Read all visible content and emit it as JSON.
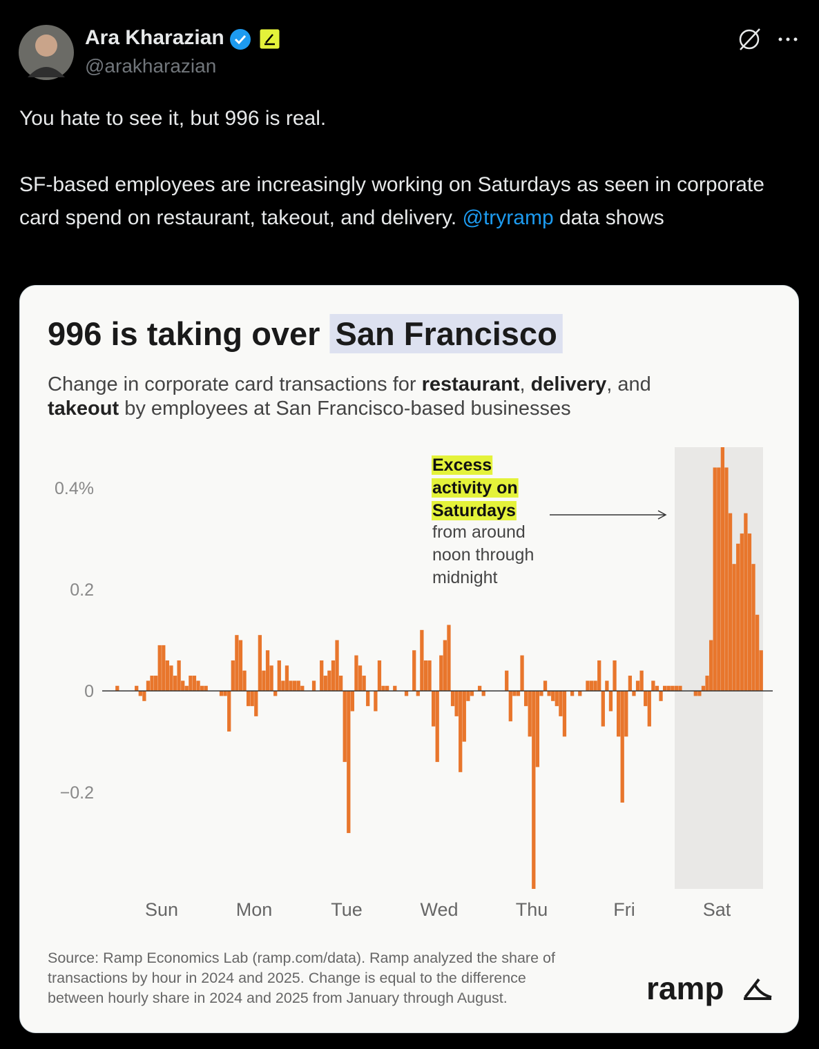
{
  "tweet": {
    "name": "Ara Kharazian",
    "handle": "@arakharazian",
    "paragraph_1": "You hate to see it, but 996 is real.",
    "paragraph_2": "SF-based employees are increasingly working on Saturdays as seen in corporate card spend on restaurant, takeout, and delivery.",
    "mention": "@tryramp",
    "paragraph_2_end": "data shows"
  },
  "chart_data": {
    "type": "bar",
    "title": [
      "996 is taking over",
      "San Francisco"
    ],
    "subtitle": [
      [
        "Change in corporate card transactions for ",
        "restaurant",
        ", ",
        "delivery",
        ", and"
      ],
      [
        "takeout",
        " by employees at San Francisco-based businesses"
      ]
    ],
    "annotation": {
      "highlight": [
        "Excess",
        "activity on",
        "Saturdays"
      ],
      "text": [
        "from around",
        "noon through",
        "midnight"
      ]
    },
    "categories": [
      null,
      null,
      null,
      null,
      null,
      null,
      null,
      null,
      null,
      null,
      null,
      null,
      "Sun",
      null,
      null,
      null,
      null,
      null,
      null,
      null,
      null,
      null,
      null,
      null,
      null,
      null,
      null,
      null,
      null,
      null,
      null,
      null,
      null,
      null,
      null,
      null,
      "Mon",
      null,
      null,
      null,
      null,
      null,
      null,
      null,
      null,
      null,
      null,
      null,
      null,
      null,
      null,
      null,
      null,
      null,
      null,
      null,
      null,
      null,
      null,
      null,
      "Tue",
      null,
      null,
      null,
      null,
      null,
      null,
      null,
      null,
      null,
      null,
      null,
      null,
      null,
      null,
      null,
      null,
      null,
      null,
      null,
      null,
      null,
      null,
      null,
      "Wed",
      null,
      null,
      null,
      null,
      null,
      null,
      null,
      null,
      null,
      null,
      null,
      null,
      null,
      null,
      null,
      null,
      null,
      null,
      null,
      null,
      null,
      null,
      null,
      "Thu",
      null,
      null,
      null,
      null,
      null,
      null,
      null,
      null,
      null,
      null,
      null,
      null,
      null,
      null,
      null,
      null,
      null,
      null,
      null,
      null,
      null,
      null,
      null,
      "Fri",
      null,
      null,
      null,
      null,
      null,
      null,
      null,
      null,
      null,
      null,
      null,
      null,
      null,
      null,
      null,
      null,
      null,
      null,
      null,
      null,
      null,
      null,
      null,
      "Sat",
      null,
      null,
      null,
      null,
      null,
      null,
      null,
      null,
      null,
      null,
      null
    ],
    "values": [
      0.01,
      0,
      0,
      0,
      0,
      0.01,
      -0.01,
      -0.02,
      0.02,
      0.03,
      0.03,
      0.09,
      0.09,
      0.06,
      0.05,
      0.03,
      0.06,
      0.02,
      0.01,
      0.03,
      0.03,
      0.02,
      0.01,
      0.01,
      0,
      0,
      0,
      -0.01,
      -0.01,
      -0.08,
      0.06,
      0.11,
      0.1,
      0.04,
      -0.03,
      -0.03,
      -0.05,
      0.11,
      0.04,
      0.08,
      0.05,
      -0.01,
      0.06,
      0.02,
      0.05,
      0.02,
      0.02,
      0.02,
      0.01,
      0,
      0,
      0.02,
      0,
      0.06,
      0.03,
      0.04,
      0.06,
      0.1,
      0.03,
      -0.14,
      -0.28,
      -0.04,
      0.07,
      0.05,
      0.03,
      -0.03,
      0,
      -0.04,
      0.06,
      0.01,
      0.01,
      0,
      0.01,
      0,
      0,
      -0.01,
      0,
      0.08,
      -0.01,
      0.12,
      0.06,
      0.06,
      -0.07,
      -0.14,
      0.07,
      0.1,
      0.13,
      -0.03,
      -0.05,
      -0.16,
      -0.1,
      -0.02,
      -0.01,
      0,
      0.01,
      -0.01,
      0,
      0,
      0,
      0,
      0,
      0.04,
      -0.06,
      -0.01,
      -0.01,
      0.07,
      -0.03,
      -0.09,
      -0.39,
      -0.15,
      -0.01,
      0.02,
      -0.01,
      -0.02,
      -0.03,
      -0.05,
      -0.09,
      0,
      -0.01,
      0,
      -0.01,
      0,
      0.02,
      0.02,
      0.02,
      0.06,
      -0.07,
      0.02,
      -0.04,
      0.06,
      -0.09,
      -0.22,
      -0.09,
      0.03,
      -0.01,
      0.02,
      0.04,
      -0.03,
      -0.07,
      0.02,
      0.01,
      -0.02,
      0.01,
      0.01,
      0.01,
      0.01,
      0.01,
      0,
      0,
      0,
      -0.01,
      -0.01,
      0.01,
      0.03,
      0.1,
      0.44,
      0.44,
      0.48,
      0.44,
      0.35,
      0.25,
      0.29,
      0.31,
      0.35,
      0.31,
      0.25,
      0.15,
      0.08
    ],
    "color": "#e8762c",
    "ylim": [
      -0.39,
      0.48
    ],
    "yticks": [
      {
        "value": 0.4,
        "label": "0.4%"
      },
      0.2,
      0,
      {
        "value": -0.2,
        "label": "−0.2"
      }
    ],
    "grid": false,
    "source": [
      "Source: Ramp Economics Lab (ramp.com/data). Ramp analyzed the share of",
      "transactions by hour in 2024 and 2025. Change is equal to the difference",
      "between hourly share in 2024 and 2025 from January through August."
    ],
    "brand": "ramp"
  }
}
